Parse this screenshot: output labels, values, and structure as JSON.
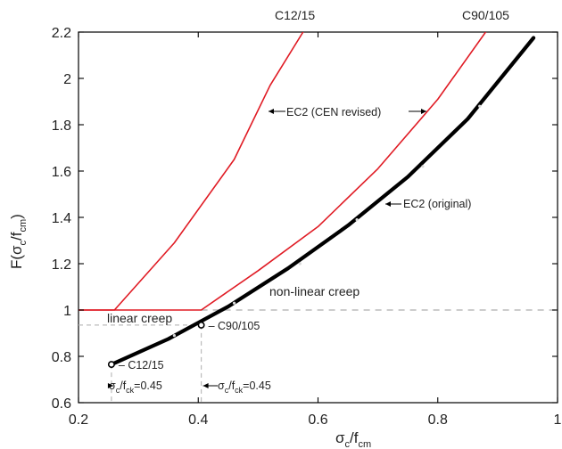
{
  "chart_data": {
    "type": "line",
    "xlabel_main": "σ",
    "xlabel_sub1": "c",
    "xlabel_sep": "/f",
    "xlabel_sub2": "cm",
    "ylabel_main": "F(σ",
    "ylabel_sub1": "c",
    "ylabel_sep": "/f",
    "ylabel_sub2": "cm",
    "ylabel_close": ")",
    "xlim": [
      0.2,
      1.0
    ],
    "ylim": [
      0.6,
      2.2
    ],
    "x_ticks": [
      0.2,
      0.4,
      0.6,
      0.8,
      1.0
    ],
    "x_tick_labels": [
      "0.2",
      "0.4",
      "0.6",
      "0.8",
      "1"
    ],
    "y_ticks": [
      0.6,
      0.8,
      1.0,
      1.2,
      1.4,
      1.6,
      1.8,
      2.0,
      2.2
    ],
    "y_tick_labels": [
      "0.6",
      "0.8",
      "1",
      "1.2",
      "1.4",
      "1.6",
      "1.8",
      "2",
      "2.2"
    ],
    "series": [
      {
        "name": "EC2 (CEN revised)",
        "color": "#e01b24",
        "stroke": "thin",
        "x": [
          0.1,
          0.26,
          0.36,
          0.46,
          0.52,
          0.575
        ],
        "y": [
          1.0,
          1.0,
          1.29,
          1.65,
          1.97,
          2.2
        ]
      },
      {
        "name": "EC2 (CEN revised)",
        "color": "#e01b24",
        "stroke": "thin",
        "x": [
          0.1,
          0.405,
          0.5,
          0.6,
          0.7,
          0.8,
          0.88
        ],
        "y": [
          1.0,
          1.0,
          1.17,
          1.36,
          1.61,
          1.91,
          2.2
        ]
      },
      {
        "name": "EC2 (original)",
        "color": "#000000",
        "stroke": "thick",
        "x": [
          0.255,
          0.35,
          0.45,
          0.55,
          0.65,
          0.75,
          0.85,
          0.96
        ],
        "y": [
          0.765,
          0.875,
          1.015,
          1.18,
          1.365,
          1.575,
          1.825,
          2.175
        ]
      }
    ],
    "markers_on_original": {
      "x": [
        0.36,
        0.46,
        0.57,
        0.665,
        0.775,
        0.87
      ],
      "y": [
        0.89,
        1.03,
        1.2,
        1.39,
        1.62,
        1.88
      ]
    },
    "points": [
      {
        "x": 0.255,
        "y": 0.765,
        "label": "– C12/15"
      },
      {
        "x": 0.405,
        "y": 0.935,
        "label": "– C90/105"
      }
    ],
    "reference_lines": {
      "horizontal_dashed_y": 1.0,
      "vertical_dashed_x": [
        0.255,
        0.405
      ]
    },
    "annotations": {
      "top_left_curve": "C12/15",
      "top_right_curve": "C90/105",
      "cen_revised": "EC2 (CEN revised)",
      "original": "EC2 (original)",
      "non_linear": "non-linear creep",
      "linear": "linear creep",
      "fck_sigma": "σ",
      "fck_sub1": "c",
      "fck_sep": "/f",
      "fck_sub2": "ck",
      "fck_value": "=0.45"
    },
    "grid": false,
    "legend": "none"
  }
}
